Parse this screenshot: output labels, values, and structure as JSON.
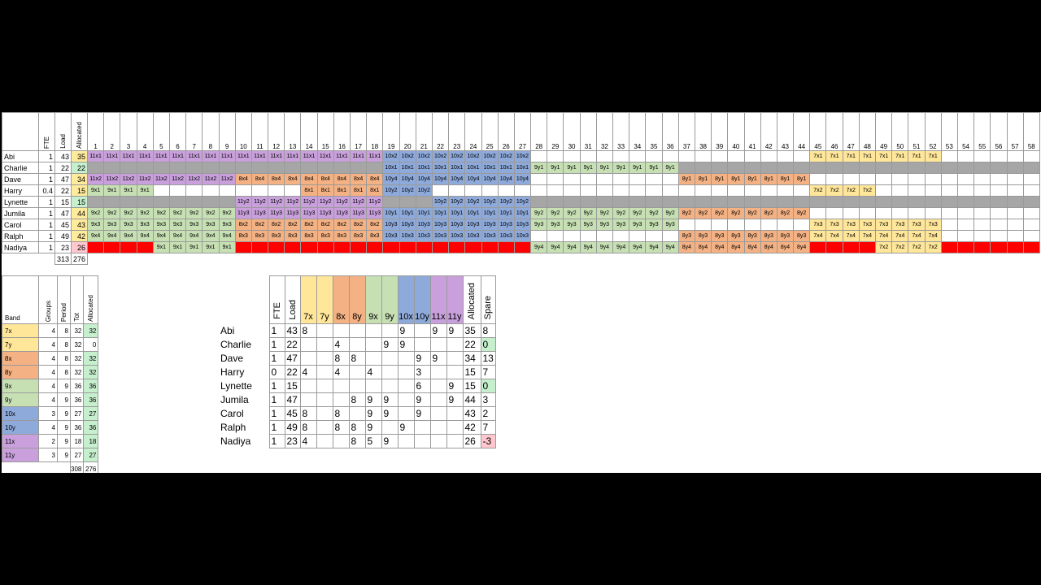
{
  "colors": {
    "7x": "#ffe699",
    "7y": "#ffe699",
    "8x": "#f4b183",
    "8y": "#f4b183",
    "9x": "#c6e0b4",
    "9y": "#c6e0b4",
    "10x": "#8eaadb",
    "10y": "#8eaadb",
    "11x": "#c9a0dc",
    "11y": "#c9a0dc",
    "grey": "#a6a6a6",
    "red": "#ff0000",
    "green": "#c6efce",
    "pink": "#ffc7ce",
    "yellow": "#ffeb9c"
  },
  "headers": {
    "fte": "FTE",
    "load": "Load",
    "allocated": "Allocated",
    "band": "Band",
    "groups": "Groups",
    "period": "Period",
    "tot": "Tot",
    "spare": "Spare"
  },
  "periods": [
    "1",
    "2",
    "3",
    "4",
    "5",
    "6",
    "7",
    "8",
    "9",
    "10",
    "11",
    "12",
    "13",
    "14",
    "15",
    "16",
    "17",
    "18",
    "19",
    "20",
    "21",
    "22",
    "23",
    "24",
    "25",
    "26",
    "27",
    "28",
    "29",
    "30",
    "31",
    "32",
    "33",
    "34",
    "35",
    "36",
    "37",
    "38",
    "39",
    "40",
    "41",
    "42",
    "43",
    "44",
    "45",
    "46",
    "47",
    "48",
    "49",
    "50",
    "51",
    "52",
    "53",
    "54",
    "55",
    "56",
    "57",
    "58"
  ],
  "staff": [
    {
      "name": "Abi",
      "fte": "1",
      "load": "43",
      "allocated": "35",
      "alloc_color": "yellow",
      "runs": [
        [
          "11x1",
          18
        ],
        [
          "10x2",
          9
        ],
        [
          "",
          17
        ],
        [
          "7x1",
          8
        ],
        [
          "",
          6
        ]
      ]
    },
    {
      "name": "Charlie",
      "fte": "1",
      "load": "22",
      "allocated": "22",
      "alloc_color": "green",
      "runs": [
        [
          "#grey",
          18
        ],
        [
          "10x1",
          9
        ],
        [
          "9y1",
          9
        ],
        [
          "#grey",
          22
        ]
      ]
    },
    {
      "name": "Dave",
      "fte": "1",
      "load": "47",
      "allocated": "34",
      "alloc_color": "yellow",
      "runs": [
        [
          "11x2",
          9
        ],
        [
          "8x4",
          9
        ],
        [
          "10y4",
          9
        ],
        [
          "",
          9
        ],
        [
          "8y1",
          8
        ],
        [
          "",
          14
        ]
      ]
    },
    {
      "name": "Harry",
      "fte": "0.4",
      "load": "22",
      "allocated": "15",
      "alloc_color": "yellow",
      "runs": [
        [
          "9x1",
          4
        ],
        [
          "",
          9
        ],
        [
          "8x1",
          5
        ],
        [
          "10y2",
          3
        ],
        [
          "",
          23
        ],
        [
          "7x2",
          4
        ],
        [
          "",
          10
        ]
      ]
    },
    {
      "name": "Lynette",
      "fte": "1",
      "load": "15",
      "allocated": "15",
      "alloc_color": "green",
      "runs": [
        [
          "#grey",
          9
        ],
        [
          "11y2",
          9
        ],
        [
          "#grey",
          3
        ],
        [
          "10y2",
          6
        ],
        [
          "#grey",
          31
        ]
      ]
    },
    {
      "name": "Jumila",
      "fte": "1",
      "load": "47",
      "allocated": "44",
      "alloc_color": "yellow",
      "runs": [
        [
          "9x2",
          9
        ],
        [
          "11y3",
          9
        ],
        [
          "10y1",
          9
        ],
        [
          "9y2",
          9
        ],
        [
          "8y2",
          8
        ],
        [
          "",
          14
        ]
      ]
    },
    {
      "name": "Carol",
      "fte": "1",
      "load": "45",
      "allocated": "43",
      "alloc_color": "yellow",
      "runs": [
        [
          "9x3",
          9
        ],
        [
          "8x2",
          9
        ],
        [
          "10y3",
          9
        ],
        [
          "9y3",
          9
        ],
        [
          "",
          8
        ],
        [
          "7x3",
          8
        ],
        [
          "",
          6
        ]
      ]
    },
    {
      "name": "Ralph",
      "fte": "1",
      "load": "49",
      "allocated": "42",
      "alloc_color": "yellow",
      "runs": [
        [
          "9x4",
          9
        ],
        [
          "8x3",
          9
        ],
        [
          "10x3",
          9
        ],
        [
          "",
          9
        ],
        [
          "8y3",
          8
        ],
        [
          "7x4",
          8
        ],
        [
          "",
          6
        ]
      ]
    },
    {
      "name": "Nadiya",
      "fte": "1",
      "load": "23",
      "allocated": "26",
      "alloc_color": "pink",
      "runs": [
        [
          "#red",
          4
        ],
        [
          "9x1",
          5
        ],
        [
          "#red",
          18
        ],
        [
          "9y4",
          9
        ],
        [
          "8y4",
          8
        ],
        [
          "#red",
          4
        ],
        [
          "7x2",
          4
        ],
        [
          "#red",
          6
        ]
      ]
    }
  ],
  "main_totals": {
    "load": "313",
    "allocated": "276"
  },
  "bands": [
    {
      "band": "7x",
      "groups": "4",
      "period": "8",
      "tot": "32",
      "allocated": "32",
      "alloc_color": "green"
    },
    {
      "band": "7y",
      "groups": "4",
      "period": "8",
      "tot": "32",
      "allocated": "0",
      "alloc_color": ""
    },
    {
      "band": "8x",
      "groups": "4",
      "period": "8",
      "tot": "32",
      "allocated": "32",
      "alloc_color": "green"
    },
    {
      "band": "8y",
      "groups": "4",
      "period": "8",
      "tot": "32",
      "allocated": "32",
      "alloc_color": "green"
    },
    {
      "band": "9x",
      "groups": "4",
      "period": "9",
      "tot": "36",
      "allocated": "36",
      "alloc_color": "green"
    },
    {
      "band": "9y",
      "groups": "4",
      "period": "9",
      "tot": "36",
      "allocated": "36",
      "alloc_color": "green"
    },
    {
      "band": "10x",
      "groups": "3",
      "period": "9",
      "tot": "27",
      "allocated": "27",
      "alloc_color": "green"
    },
    {
      "band": "10y",
      "groups": "4",
      "period": "9",
      "tot": "36",
      "allocated": "36",
      "alloc_color": "green"
    },
    {
      "band": "11x",
      "groups": "2",
      "period": "9",
      "tot": "18",
      "allocated": "18",
      "alloc_color": "green"
    },
    {
      "band": "11y",
      "groups": "3",
      "period": "9",
      "tot": "27",
      "allocated": "27",
      "alloc_color": "green"
    }
  ],
  "band_totals": {
    "tot": "308",
    "allocated": "276"
  },
  "summary_columns": [
    "7x",
    "7y",
    "8x",
    "8y",
    "9x",
    "9y",
    "10x",
    "10y",
    "11x",
    "11y"
  ],
  "summary": [
    {
      "name": "Abi",
      "fte": "1",
      "load": "43",
      "cells": [
        "8",
        "",
        "",
        "",
        "",
        "",
        "9",
        "",
        "9",
        "9"
      ],
      "allocated": "35",
      "spare": "8",
      "spare_color": ""
    },
    {
      "name": "Charlie",
      "fte": "1",
      "load": "22",
      "cells": [
        "",
        "",
        "4",
        "",
        "",
        "9",
        "9",
        "",
        "",
        ""
      ],
      "allocated": "22",
      "spare": "0",
      "spare_color": "green"
    },
    {
      "name": "Dave",
      "fte": "1",
      "load": "47",
      "cells": [
        "",
        "",
        "8",
        "8",
        "",
        "",
        "",
        "9",
        "9",
        ""
      ],
      "allocated": "34",
      "spare": "13",
      "spare_color": ""
    },
    {
      "name": "Harry",
      "fte": "0",
      "load": "22",
      "cells": [
        "4",
        "",
        "4",
        "",
        "4",
        "",
        "",
        "3",
        "",
        ""
      ],
      "allocated": "15",
      "spare": "7",
      "spare_color": ""
    },
    {
      "name": "Lynette",
      "fte": "1",
      "load": "15",
      "cells": [
        "",
        "",
        "",
        "",
        "",
        "",
        "",
        "6",
        "",
        "9"
      ],
      "allocated": "15",
      "spare": "0",
      "spare_color": "green"
    },
    {
      "name": "Jumila",
      "fte": "1",
      "load": "47",
      "cells": [
        "",
        "",
        "",
        "8",
        "9",
        "9",
        "",
        "9",
        "",
        "9"
      ],
      "allocated": "44",
      "spare": "3",
      "spare_color": ""
    },
    {
      "name": "Carol",
      "fte": "1",
      "load": "45",
      "cells": [
        "8",
        "",
        "8",
        "",
        "9",
        "9",
        "",
        "9",
        "",
        ""
      ],
      "allocated": "43",
      "spare": "2",
      "spare_color": ""
    },
    {
      "name": "Ralph",
      "fte": "1",
      "load": "49",
      "cells": [
        "8",
        "",
        "8",
        "8",
        "9",
        "",
        "9",
        "",
        "",
        ""
      ],
      "allocated": "42",
      "spare": "7",
      "spare_color": ""
    },
    {
      "name": "Nadiya",
      "fte": "1",
      "load": "23",
      "cells": [
        "4",
        "",
        "",
        "8",
        "5",
        "9",
        "",
        "",
        "",
        ""
      ],
      "allocated": "26",
      "spare": "-3",
      "spare_color": "pink"
    }
  ]
}
